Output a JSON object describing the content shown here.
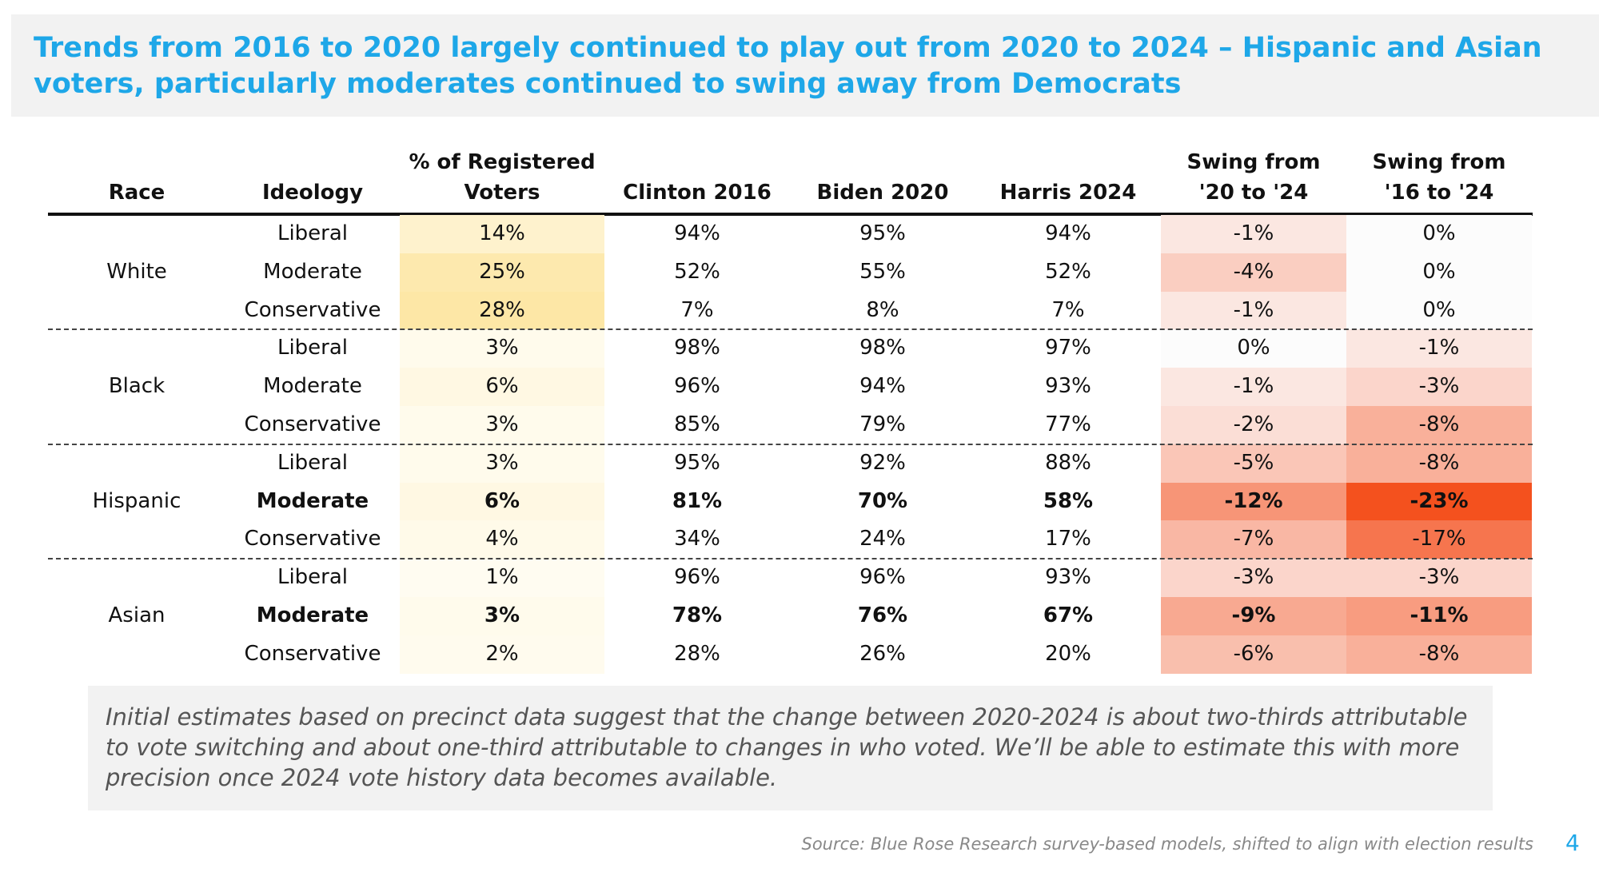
{
  "title": "Trends from 2016 to 2020 largely continued to play out from 2020 to 2024 – Hispanic and Asian voters, particularly moderates continued to swing away from Democrats",
  "title_lines": [
    "Trends from 2016 to 2020 largely continued to play out from 2020 to 2024 – Hispanic and Asian",
    "voters, particularly moderates continued to swing away from Democrats"
  ],
  "headers": {
    "race": "Race",
    "ideology": "Ideology",
    "registered_line1": "% of Registered",
    "registered_line2": "Voters",
    "clinton": "Clinton 2016",
    "biden": "Biden 2020",
    "harris": "Harris 2024",
    "swing1_line1": "Swing from",
    "swing1_line2": "'20 to '24",
    "swing2_line1": "Swing from",
    "swing2_line2": "'16 to '24"
  },
  "groups": [
    {
      "race": "White",
      "rows": [
        {
          "ideology": "Liberal",
          "registered": "14%",
          "clinton": "94%",
          "biden": "95%",
          "harris": "94%",
          "swing_20_24": "-1%",
          "swing_16_24": "0%",
          "bold": false
        },
        {
          "ideology": "Moderate",
          "registered": "25%",
          "clinton": "52%",
          "biden": "55%",
          "harris": "52%",
          "swing_20_24": "-4%",
          "swing_16_24": "0%",
          "bold": false
        },
        {
          "ideology": "Conservative",
          "registered": "28%",
          "clinton": "7%",
          "biden": "8%",
          "harris": "7%",
          "swing_20_24": "-1%",
          "swing_16_24": "0%",
          "bold": false
        }
      ]
    },
    {
      "race": "Black",
      "rows": [
        {
          "ideology": "Liberal",
          "registered": "3%",
          "clinton": "98%",
          "biden": "98%",
          "harris": "97%",
          "swing_20_24": "0%",
          "swing_16_24": "-1%",
          "bold": false
        },
        {
          "ideology": "Moderate",
          "registered": "6%",
          "clinton": "96%",
          "biden": "94%",
          "harris": "93%",
          "swing_20_24": "-1%",
          "swing_16_24": "-3%",
          "bold": false
        },
        {
          "ideology": "Conservative",
          "registered": "3%",
          "clinton": "85%",
          "biden": "79%",
          "harris": "77%",
          "swing_20_24": "-2%",
          "swing_16_24": "-8%",
          "bold": false
        }
      ]
    },
    {
      "race": "Hispanic",
      "rows": [
        {
          "ideology": "Liberal",
          "registered": "3%",
          "clinton": "95%",
          "biden": "92%",
          "harris": "88%",
          "swing_20_24": "-5%",
          "swing_16_24": "-8%",
          "bold": false
        },
        {
          "ideology": "Moderate",
          "registered": "6%",
          "clinton": "81%",
          "biden": "70%",
          "harris": "58%",
          "swing_20_24": "-12%",
          "swing_16_24": "-23%",
          "bold": true
        },
        {
          "ideology": "Conservative",
          "registered": "4%",
          "clinton": "34%",
          "biden": "24%",
          "harris": "17%",
          "swing_20_24": "-7%",
          "swing_16_24": "-17%",
          "bold": false
        }
      ]
    },
    {
      "race": "Asian",
      "rows": [
        {
          "ideology": "Liberal",
          "registered": "1%",
          "clinton": "96%",
          "biden": "96%",
          "harris": "93%",
          "swing_20_24": "-3%",
          "swing_16_24": "-3%",
          "bold": false
        },
        {
          "ideology": "Moderate",
          "registered": "3%",
          "clinton": "78%",
          "biden": "76%",
          "harris": "67%",
          "swing_20_24": "-9%",
          "swing_16_24": "-11%",
          "bold": true
        },
        {
          "ideology": "Conservative",
          "registered": "2%",
          "clinton": "28%",
          "biden": "26%",
          "harris": "20%",
          "swing_20_24": "-6%",
          "swing_16_24": "-8%",
          "bold": false
        }
      ]
    }
  ],
  "note": "Initial estimates based on precinct data suggest that the change between 2020-2024 is about two-thirds attributable to vote switching and about one-third attributable to changes in who voted. We’ll be able to estimate this with more precision once 2024 vote history data becomes available.",
  "source": "Source: Blue Rose Research survey-based models, shifted to align with election results",
  "page_number": "4",
  "colors": {
    "title": "#1ea7e8",
    "registered_fill": "#fde7a6",
    "swing_fill": "#f4511e",
    "note_bg": "#f2f2f2"
  }
}
